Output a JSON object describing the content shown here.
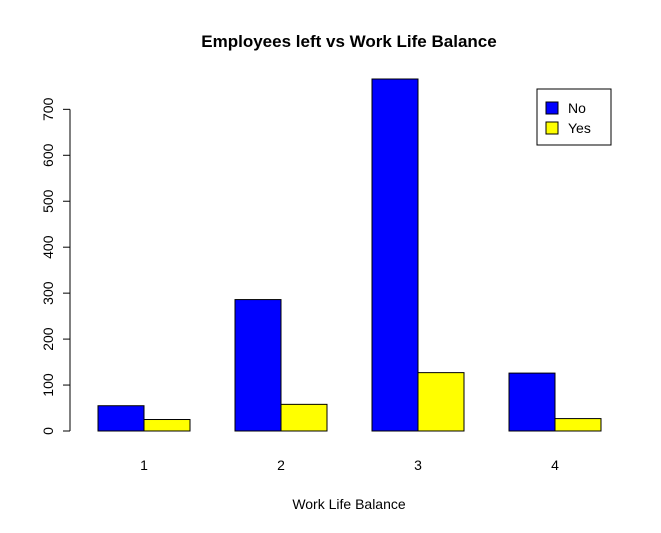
{
  "chart_data": {
    "type": "grouped_bar",
    "title": "Employees left vs Work Life Balance",
    "x_label": "Work Life Balance",
    "categories": [
      "1",
      "2",
      "3",
      "4"
    ],
    "series": [
      {
        "name": "No",
        "color": "#0000ff",
        "values": [
          55,
          286,
          766,
          126
        ]
      },
      {
        "name": "Yes",
        "color": "#ffff00",
        "values": [
          25,
          58,
          127,
          27
        ]
      }
    ],
    "ylim": [
      0,
      766
    ],
    "yticks": [
      0,
      100,
      200,
      300,
      400,
      500,
      600,
      700
    ],
    "legend": "top-right"
  }
}
